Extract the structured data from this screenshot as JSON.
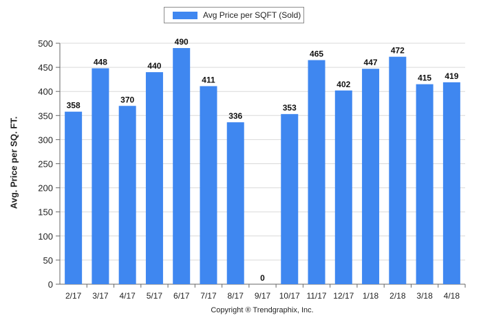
{
  "chart_data": {
    "type": "bar",
    "categories": [
      "2/17",
      "3/17",
      "4/17",
      "5/17",
      "6/17",
      "7/17",
      "8/17",
      "9/17",
      "10/17",
      "11/17",
      "12/17",
      "1/18",
      "2/18",
      "3/18",
      "4/18"
    ],
    "series": [
      {
        "name": "Avg Price per SQFT (Sold)",
        "values": [
          358,
          448,
          370,
          440,
          490,
          411,
          336,
          0,
          353,
          465,
          402,
          447,
          472,
          415,
          419
        ]
      }
    ],
    "ylabel": "Avg. Price per SQ. FT.",
    "xlabel": "",
    "ylim": [
      0,
      500
    ],
    "yticks": [
      0,
      50,
      100,
      150,
      200,
      250,
      300,
      350,
      400,
      450,
      500
    ],
    "grid": true,
    "legend": "top-center",
    "bar_color": "#3f87f0"
  },
  "footer": {
    "copyright": "Copyright ® Trendgraphix, Inc."
  }
}
